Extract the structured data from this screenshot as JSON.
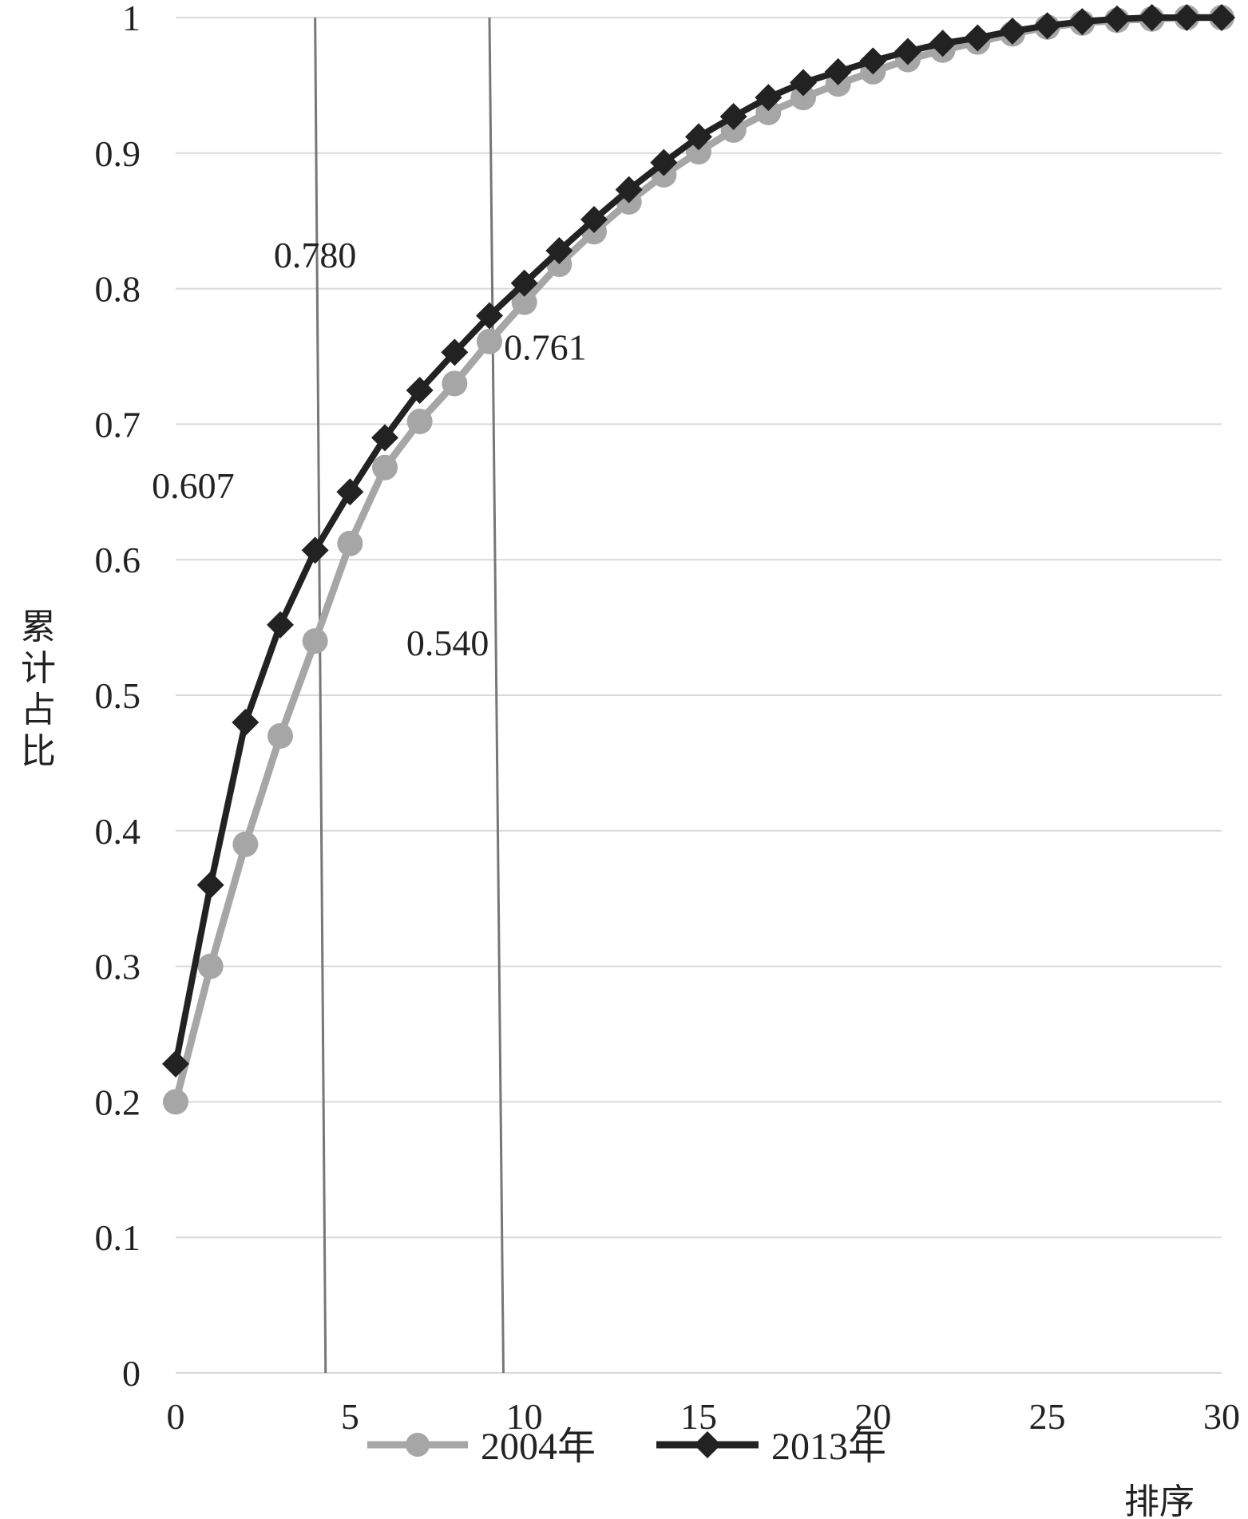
{
  "chart_data": {
    "type": "line",
    "title": "",
    "xlabel": "排序",
    "ylabel": "累计占比",
    "xlim": [
      0,
      30
    ],
    "ylim": [
      0,
      1
    ],
    "x_ticks": [
      "0",
      "5",
      "10",
      "15",
      "20",
      "25",
      "30"
    ],
    "y_ticks": [
      "0",
      "0.1",
      "0.2",
      "0.3",
      "0.4",
      "0.5",
      "0.6",
      "0.7",
      "0.8",
      "0.9",
      "1"
    ],
    "grid": "horizontal",
    "legend": "bottom",
    "series": [
      {
        "name": "2004年",
        "color": "#a6a6a6",
        "marker": "circle",
        "x": [
          0,
          1,
          2,
          3,
          4,
          5,
          6,
          7,
          8,
          9,
          10,
          11,
          12,
          13,
          14,
          15,
          16,
          17,
          18,
          19,
          20,
          21,
          22,
          23,
          24,
          25,
          26,
          27,
          28,
          29,
          30
        ],
        "values": [
          0.2,
          0.3,
          0.39,
          0.47,
          0.54,
          0.612,
          0.668,
          0.702,
          0.73,
          0.761,
          0.79,
          0.818,
          0.842,
          0.864,
          0.884,
          0.901,
          0.917,
          0.93,
          0.941,
          0.951,
          0.96,
          0.969,
          0.976,
          0.982,
          0.988,
          0.993,
          0.996,
          0.998,
          0.999,
          1.0,
          1.0
        ]
      },
      {
        "name": "2013年",
        "color": "#222222",
        "marker": "diamond",
        "x": [
          0,
          1,
          2,
          3,
          4,
          5,
          6,
          7,
          8,
          9,
          10,
          11,
          12,
          13,
          14,
          15,
          16,
          17,
          18,
          19,
          20,
          21,
          22,
          23,
          24,
          25,
          26,
          27,
          28,
          29,
          30
        ],
        "values": [
          0.228,
          0.36,
          0.48,
          0.552,
          0.607,
          0.65,
          0.69,
          0.725,
          0.753,
          0.78,
          0.804,
          0.828,
          0.851,
          0.873,
          0.893,
          0.912,
          0.927,
          0.941,
          0.952,
          0.96,
          0.968,
          0.975,
          0.981,
          0.985,
          0.99,
          0.994,
          0.997,
          0.999,
          1.0,
          1.0,
          1.0
        ]
      }
    ],
    "reference_lines": [
      {
        "x_top": 4.0,
        "x_bottom": 4.3
      },
      {
        "x_top": 9.0,
        "x_bottom": 9.4
      }
    ],
    "annotations": [
      {
        "text": "0.780",
        "x": 4.0,
        "y": 0.825
      },
      {
        "text": "0.761",
        "x": 10.6,
        "y": 0.757
      },
      {
        "text": "0.607",
        "x": 0.5,
        "y": 0.655
      },
      {
        "text": "0.540",
        "x": 7.8,
        "y": 0.539
      }
    ]
  }
}
